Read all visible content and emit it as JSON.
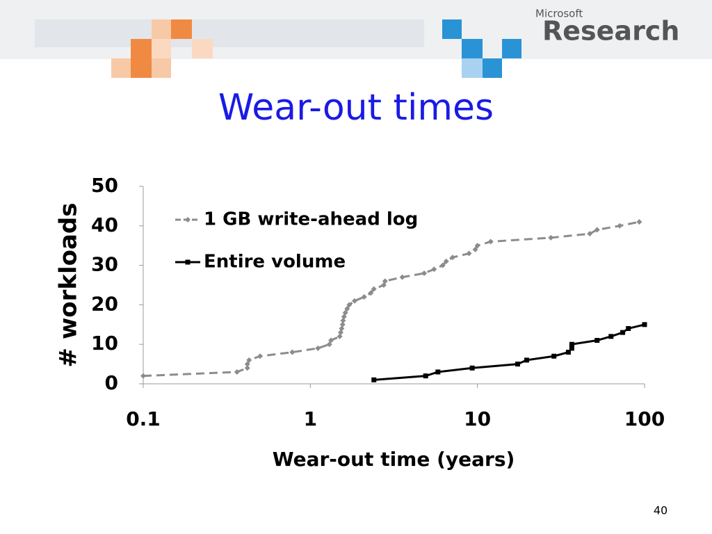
{
  "slide": {
    "logo_small": "Microsoft",
    "logo_large": "Research",
    "title": "Wear-out times",
    "page_number": "40"
  },
  "chart_data": {
    "type": "line",
    "x_label": "Wear-out time (years)",
    "y_label": "# workloads",
    "xlog": true,
    "xlim": [
      0.1,
      100
    ],
    "xticks": [
      0.1,
      1,
      10,
      100
    ],
    "ylim": [
      0,
      50
    ],
    "yticks": [
      0,
      10,
      20,
      30,
      40,
      50
    ],
    "grid": false,
    "legend": "upper-left",
    "series": [
      {
        "name": "1 GB write-ahead log",
        "color": "#8c8c8c",
        "dashed": true,
        "marker": "diamond",
        "x": [
          0.1,
          0.364,
          0.42,
          0.42,
          0.43,
          0.5,
          0.78,
          1.11,
          1.3,
          1.33,
          1.5,
          1.52,
          1.54,
          1.56,
          1.57,
          1.59,
          1.62,
          1.66,
          1.71,
          1.84,
          2.1,
          2.3,
          2.4,
          2.75,
          2.8,
          3.55,
          4.8,
          5.5,
          6.2,
          6.5,
          7.1,
          8.9,
          9.7,
          10,
          12,
          27.5,
          47,
          52,
          71,
          93
        ],
        "values": [
          2,
          3,
          4,
          5,
          6,
          7,
          8,
          9,
          10,
          11,
          12,
          13,
          14,
          15,
          16,
          17,
          18,
          19,
          20,
          21,
          22,
          23,
          24,
          25,
          26,
          27,
          28,
          29,
          30,
          31,
          32,
          33,
          34,
          35,
          36,
          37,
          38,
          39,
          40,
          41
        ]
      },
      {
        "name": "Entire volume",
        "color": "#000000",
        "dashed": false,
        "marker": "square",
        "x": [
          2.4,
          4.9,
          5.8,
          9.3,
          17.4,
          19.7,
          28.7,
          35,
          36.7,
          36.7,
          52,
          63,
          74,
          80,
          100
        ],
        "values": [
          1,
          2,
          3,
          4,
          5,
          6,
          7,
          8,
          9,
          10,
          11,
          12,
          13,
          14,
          15
        ]
      }
    ]
  }
}
